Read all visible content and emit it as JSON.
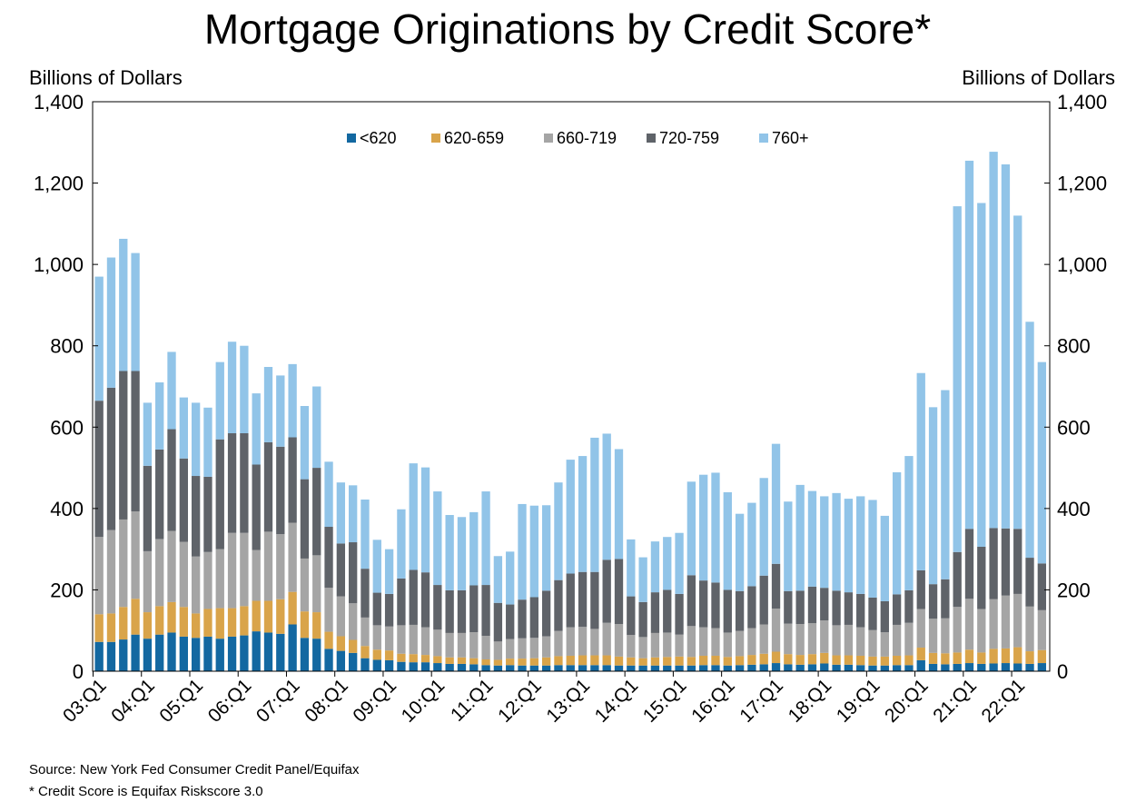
{
  "chart_data": {
    "type": "bar",
    "stacked": true,
    "title": "Mortgage Originations by Credit Score*",
    "ylabel_left": "Billions of Dollars",
    "ylabel_right": "Billions of Dollars",
    "ylim": [
      0,
      1400
    ],
    "yticks": [
      "0",
      "200",
      "400",
      "600",
      "800",
      "1,000",
      "1,200",
      "1,400"
    ],
    "ytick_values": [
      0,
      200,
      400,
      600,
      800,
      1000,
      1200,
      1400
    ],
    "grid": false,
    "legend_position": "top",
    "categories": [
      "03:Q1",
      "03:Q2",
      "03:Q3",
      "03:Q4",
      "04:Q1",
      "04:Q2",
      "04:Q3",
      "04:Q4",
      "05:Q1",
      "05:Q2",
      "05:Q3",
      "05:Q4",
      "06:Q1",
      "06:Q2",
      "06:Q3",
      "06:Q4",
      "07:Q1",
      "07:Q2",
      "07:Q3",
      "07:Q4",
      "08:Q1",
      "08:Q2",
      "08:Q3",
      "08:Q4",
      "09:Q1",
      "09:Q2",
      "09:Q3",
      "09:Q4",
      "10:Q1",
      "10:Q2",
      "10:Q3",
      "10:Q4",
      "11:Q1",
      "11:Q2",
      "11:Q3",
      "11:Q4",
      "12:Q1",
      "12:Q2",
      "12:Q3",
      "12:Q4",
      "13:Q1",
      "13:Q2",
      "13:Q3",
      "13:Q4",
      "14:Q1",
      "14:Q2",
      "14:Q3",
      "14:Q4",
      "15:Q1",
      "15:Q2",
      "15:Q3",
      "15:Q4",
      "16:Q1",
      "16:Q2",
      "16:Q3",
      "16:Q4",
      "17:Q1",
      "17:Q2",
      "17:Q3",
      "17:Q4",
      "18:Q1",
      "18:Q2",
      "18:Q3",
      "18:Q4",
      "19:Q1",
      "19:Q2",
      "19:Q3",
      "19:Q4",
      "20:Q1",
      "20:Q2",
      "20:Q3",
      "20:Q4",
      "21:Q1",
      "21:Q2",
      "21:Q3",
      "21:Q4",
      "22:Q1",
      "22:Q2",
      "22:Q3"
    ],
    "xtick_labels": [
      "03:Q1",
      "04:Q1",
      "05:Q1",
      "06:Q1",
      "07:Q1",
      "08:Q1",
      "09:Q1",
      "10:Q1",
      "11:Q1",
      "12:Q1",
      "13:Q1",
      "14:Q1",
      "15:Q1",
      "16:Q1",
      "17:Q1",
      "18:Q1",
      "19:Q1",
      "20:Q1",
      "21:Q1",
      "22:Q1"
    ],
    "series": [
      {
        "name": "<620",
        "color": "#1368a1",
        "values": [
          72,
          72,
          78,
          90,
          80,
          90,
          95,
          85,
          82,
          85,
          80,
          85,
          88,
          98,
          95,
          92,
          115,
          82,
          80,
          55,
          50,
          45,
          32,
          28,
          27,
          23,
          22,
          22,
          20,
          18,
          18,
          17,
          15,
          14,
          15,
          14,
          14,
          14,
          15,
          15,
          15,
          15,
          15,
          14,
          14,
          14,
          14,
          14,
          14,
          14,
          15,
          15,
          14,
          15,
          16,
          17,
          20,
          17,
          16,
          17,
          19,
          16,
          16,
          15,
          14,
          14,
          15,
          15,
          27,
          18,
          17,
          18,
          20,
          18,
          19,
          20,
          19,
          18,
          20
        ]
      },
      {
        "name": "620-659",
        "color": "#d9a44a",
        "values": [
          68,
          70,
          80,
          88,
          65,
          70,
          75,
          73,
          60,
          68,
          75,
          70,
          72,
          75,
          78,
          85,
          80,
          65,
          65,
          42,
          36,
          32,
          30,
          25,
          24,
          20,
          20,
          18,
          17,
          16,
          16,
          15,
          14,
          14,
          16,
          17,
          18,
          20,
          22,
          23,
          24,
          24,
          24,
          22,
          20,
          18,
          20,
          21,
          22,
          21,
          23,
          23,
          21,
          22,
          24,
          26,
          28,
          25,
          24,
          25,
          26,
          23,
          23,
          23,
          22,
          22,
          23,
          24,
          31,
          27,
          27,
          28,
          33,
          28,
          36,
          36,
          40,
          31,
          32
        ]
      },
      {
        "name": "660-719",
        "color": "#a5a5a5",
        "values": [
          190,
          205,
          215,
          215,
          150,
          165,
          175,
          160,
          140,
          140,
          145,
          185,
          180,
          125,
          170,
          160,
          170,
          130,
          140,
          108,
          98,
          90,
          70,
          60,
          59,
          70,
          72,
          68,
          65,
          60,
          60,
          64,
          58,
          45,
          48,
          50,
          50,
          52,
          62,
          70,
          70,
          65,
          80,
          80,
          55,
          52,
          60,
          60,
          54,
          76,
          70,
          68,
          60,
          62,
          66,
          72,
          106,
          75,
          76,
          76,
          80,
          74,
          75,
          70,
          65,
          60,
          76,
          80,
          95,
          84,
          86,
          112,
          125,
          107,
          122,
          130,
          131,
          110,
          98
        ]
      },
      {
        "name": "720-759",
        "color": "#5f6369",
        "values": [
          335,
          350,
          365,
          345,
          210,
          220,
          250,
          205,
          198,
          185,
          270,
          245,
          245,
          210,
          220,
          215,
          210,
          195,
          215,
          150,
          130,
          150,
          120,
          80,
          80,
          115,
          135,
          135,
          110,
          105,
          105,
          115,
          125,
          95,
          85,
          95,
          100,
          112,
          125,
          132,
          135,
          140,
          155,
          160,
          95,
          86,
          100,
          105,
          100,
          125,
          115,
          112,
          105,
          98,
          103,
          120,
          110,
          80,
          82,
          90,
          80,
          85,
          80,
          82,
          80,
          76,
          75,
          80,
          95,
          85,
          96,
          135,
          172,
          153,
          175,
          165,
          160,
          120,
          115
        ]
      },
      {
        "name": "760+",
        "color": "#91c4e8",
        "values": [
          305,
          320,
          325,
          290,
          155,
          165,
          190,
          150,
          180,
          170,
          190,
          225,
          215,
          175,
          185,
          175,
          180,
          180,
          200,
          160,
          150,
          140,
          170,
          130,
          110,
          170,
          262,
          258,
          230,
          185,
          180,
          180,
          230,
          115,
          130,
          235,
          225,
          210,
          240,
          280,
          285,
          330,
          310,
          270,
          140,
          110,
          125,
          130,
          150,
          230,
          260,
          270,
          240,
          190,
          205,
          240,
          295,
          220,
          260,
          235,
          225,
          240,
          230,
          240,
          240,
          210,
          300,
          330,
          485,
          435,
          465,
          850,
          905,
          845,
          925,
          895,
          770,
          580,
          495
        ]
      }
    ],
    "notes": [
      "Source: New York Fed Consumer Credit Panel/Equifax",
      "* Credit Score is Equifax Riskscore 3.0"
    ]
  }
}
